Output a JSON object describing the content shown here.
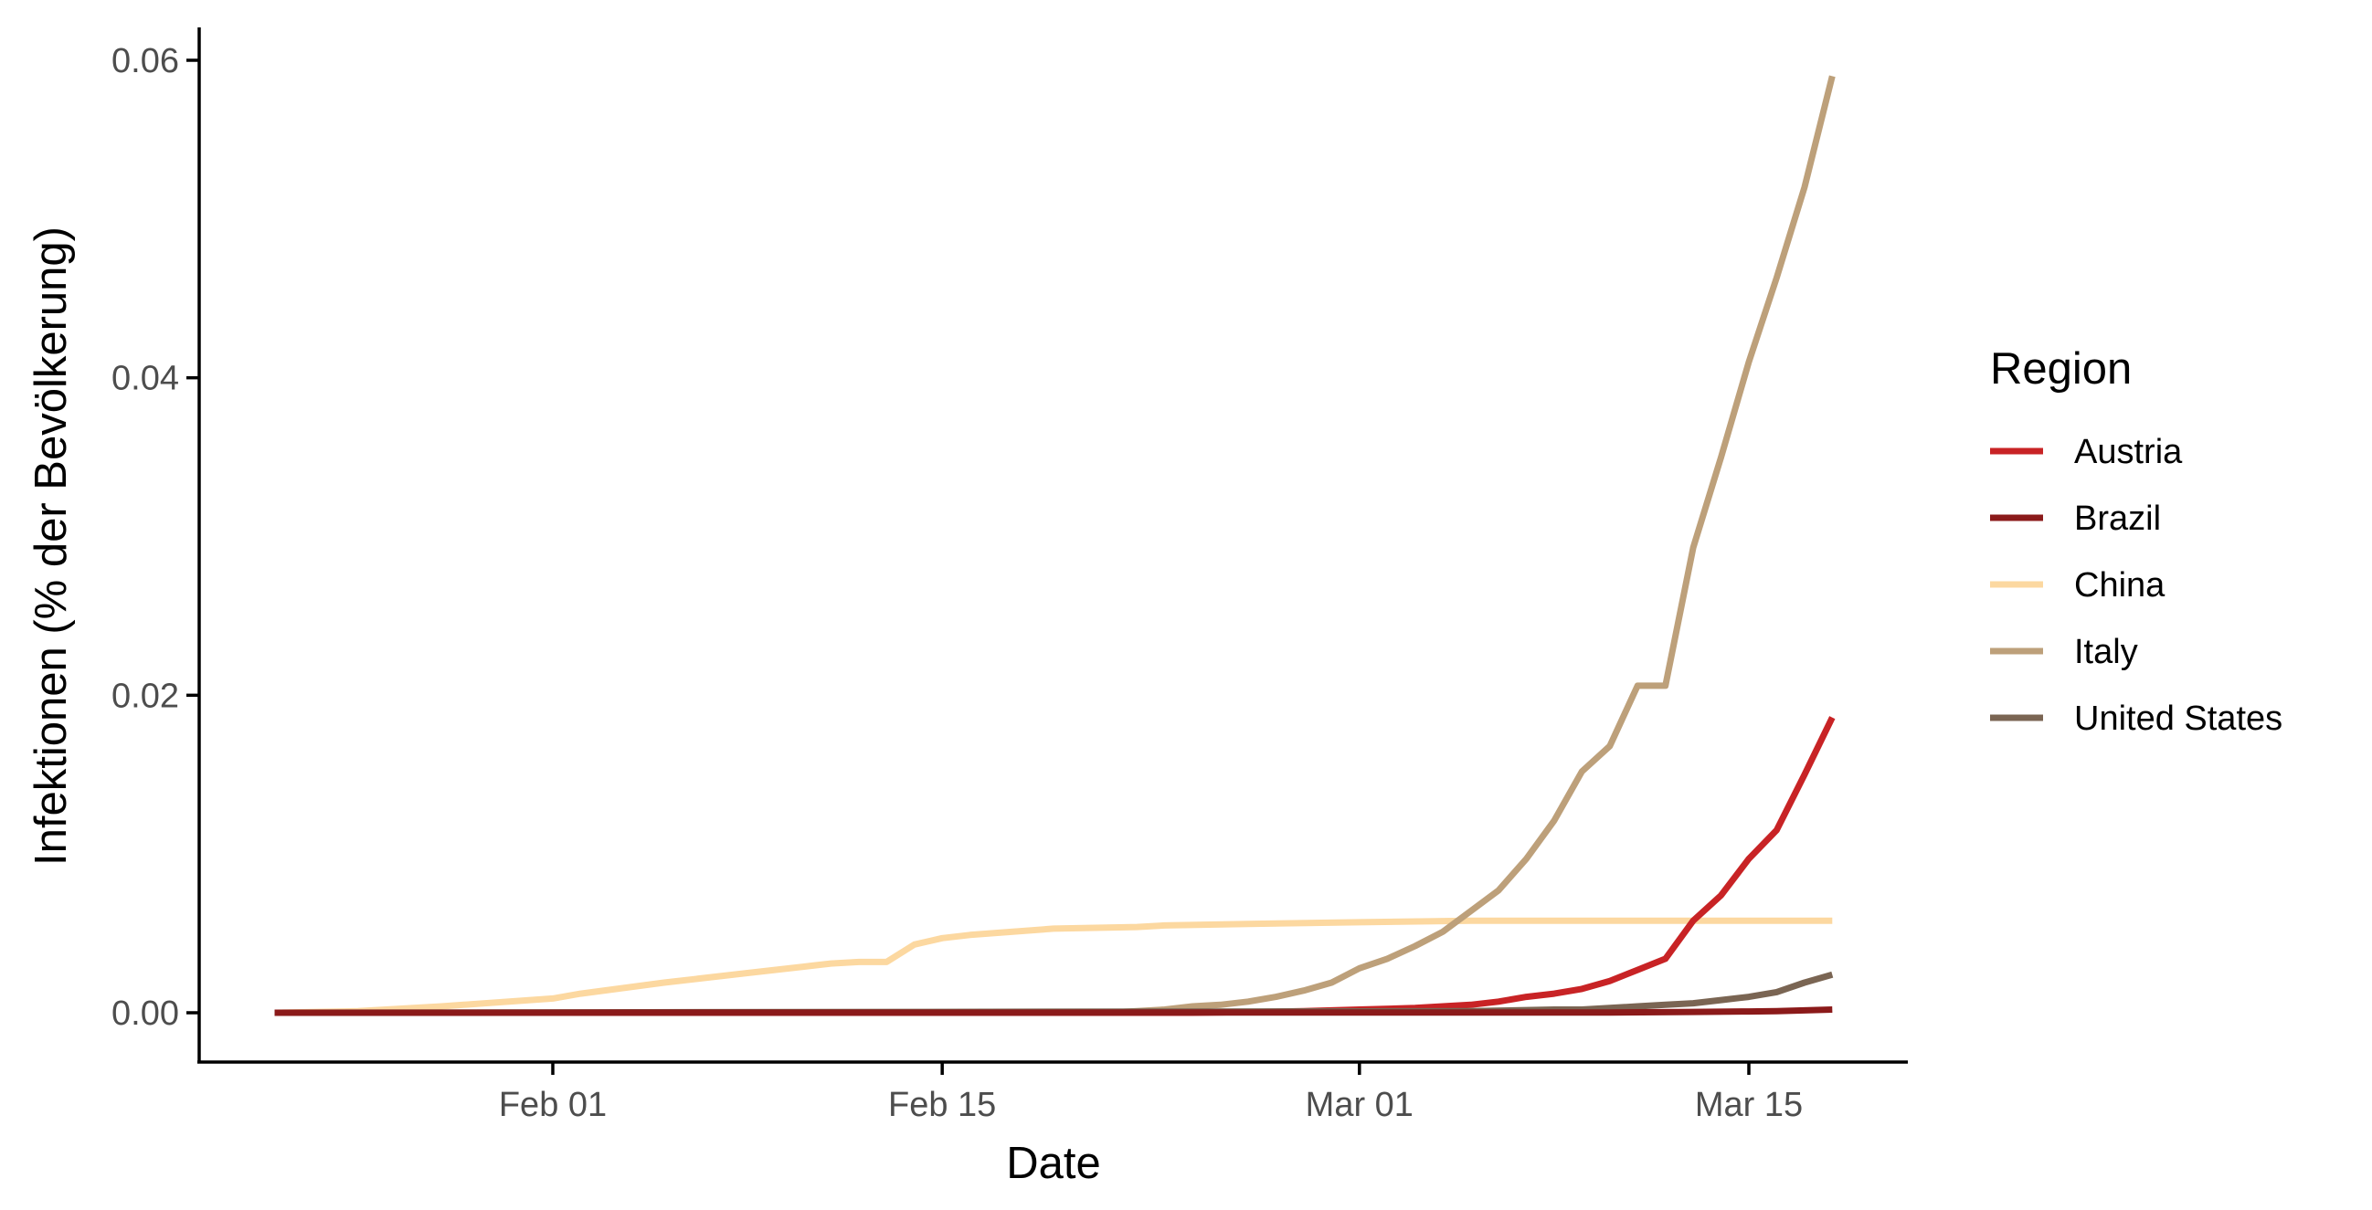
{
  "chart_data": {
    "type": "line",
    "xlabel": "Date",
    "ylabel": "Infektionen (% der Bevölkerung)",
    "x_range": [
      "2020-01-22",
      "2020-03-18"
    ],
    "ylim": [
      -0.003,
      0.0605
    ],
    "x_ticks": [
      {
        "date": "2020-02-01",
        "label": "Feb 01"
      },
      {
        "date": "2020-02-15",
        "label": "Feb 15"
      },
      {
        "date": "2020-03-01",
        "label": "Mar 01"
      },
      {
        "date": "2020-03-15",
        "label": "Mar 15"
      }
    ],
    "y_ticks": [
      {
        "value": 0.0,
        "label": "0.00"
      },
      {
        "value": 0.02,
        "label": "0.02"
      },
      {
        "value": 0.04,
        "label": "0.04"
      },
      {
        "value": 0.06,
        "label": "0.06"
      }
    ],
    "grid": false,
    "legend": {
      "title": "Region",
      "position": "right"
    },
    "series": [
      {
        "name": "China",
        "color": "#fcd8a0",
        "points": [
          [
            "2020-01-22",
            0.0
          ],
          [
            "2020-01-25",
            0.0001
          ],
          [
            "2020-01-28",
            0.0004
          ],
          [
            "2020-02-01",
            0.0009
          ],
          [
            "2020-02-02",
            0.0012
          ],
          [
            "2020-02-05",
            0.0019
          ],
          [
            "2020-02-08",
            0.0025
          ],
          [
            "2020-02-10",
            0.0029
          ],
          [
            "2020-02-11",
            0.0031
          ],
          [
            "2020-02-12",
            0.0032
          ],
          [
            "2020-02-13",
            0.0032
          ],
          [
            "2020-02-14",
            0.0043
          ],
          [
            "2020-02-15",
            0.0047
          ],
          [
            "2020-02-16",
            0.0049
          ],
          [
            "2020-02-19",
            0.0053
          ],
          [
            "2020-02-22",
            0.0054
          ],
          [
            "2020-02-23",
            0.0055
          ],
          [
            "2020-02-26",
            0.0056
          ],
          [
            "2020-03-01",
            0.0057
          ],
          [
            "2020-03-05",
            0.0058
          ],
          [
            "2020-03-10",
            0.0058
          ],
          [
            "2020-03-18",
            0.0058
          ]
        ]
      },
      {
        "name": "Italy",
        "color": "#bda07a",
        "points": [
          [
            "2020-01-22",
            0.0
          ],
          [
            "2020-02-20",
            0.0
          ],
          [
            "2020-02-21",
            1e-05
          ],
          [
            "2020-02-22",
            0.0001
          ],
          [
            "2020-02-23",
            0.0002
          ],
          [
            "2020-02-24",
            0.0004
          ],
          [
            "2020-02-25",
            0.0005
          ],
          [
            "2020-02-26",
            0.0007
          ],
          [
            "2020-02-27",
            0.001
          ],
          [
            "2020-02-28",
            0.0014
          ],
          [
            "2020-02-29",
            0.0019
          ],
          [
            "2020-03-01",
            0.0028
          ],
          [
            "2020-03-02",
            0.0034
          ],
          [
            "2020-03-03",
            0.0042
          ],
          [
            "2020-03-04",
            0.0051
          ],
          [
            "2020-03-05",
            0.0064
          ],
          [
            "2020-03-06",
            0.0077
          ],
          [
            "2020-03-07",
            0.0097
          ],
          [
            "2020-03-08",
            0.0121
          ],
          [
            "2020-03-09",
            0.0152
          ],
          [
            "2020-03-10",
            0.0168
          ],
          [
            "2020-03-11",
            0.0206
          ],
          [
            "2020-03-12",
            0.0206
          ],
          [
            "2020-03-13",
            0.0293
          ],
          [
            "2020-03-14",
            0.035
          ],
          [
            "2020-03-15",
            0.041
          ],
          [
            "2020-03-16",
            0.0463
          ],
          [
            "2020-03-17",
            0.052
          ],
          [
            "2020-03-18",
            0.059
          ]
        ]
      },
      {
        "name": "Austria",
        "color": "#c82325",
        "points": [
          [
            "2020-01-22",
            0.0
          ],
          [
            "2020-02-24",
            0.0
          ],
          [
            "2020-02-28",
            0.0001
          ],
          [
            "2020-03-01",
            0.0002
          ],
          [
            "2020-03-03",
            0.0003
          ],
          [
            "2020-03-05",
            0.0005
          ],
          [
            "2020-03-06",
            0.0007
          ],
          [
            "2020-03-07",
            0.001
          ],
          [
            "2020-03-08",
            0.0012
          ],
          [
            "2020-03-09",
            0.0015
          ],
          [
            "2020-03-10",
            0.002
          ],
          [
            "2020-03-11",
            0.0027
          ],
          [
            "2020-03-12",
            0.0034
          ],
          [
            "2020-03-13",
            0.0058
          ],
          [
            "2020-03-14",
            0.0074
          ],
          [
            "2020-03-15",
            0.0097
          ],
          [
            "2020-03-16",
            0.0115
          ],
          [
            "2020-03-17",
            0.015
          ],
          [
            "2020-03-18",
            0.0186
          ]
        ]
      },
      {
        "name": "United States",
        "color": "#7a6553",
        "points": [
          [
            "2020-01-22",
            0.0
          ],
          [
            "2020-03-05",
            0.0001
          ],
          [
            "2020-03-08",
            0.0002
          ],
          [
            "2020-03-09",
            0.0002
          ],
          [
            "2020-03-10",
            0.0003
          ],
          [
            "2020-03-11",
            0.0004
          ],
          [
            "2020-03-12",
            0.0005
          ],
          [
            "2020-03-13",
            0.0006
          ],
          [
            "2020-03-14",
            0.0008
          ],
          [
            "2020-03-15",
            0.001
          ],
          [
            "2020-03-16",
            0.0013
          ],
          [
            "2020-03-17",
            0.0019
          ],
          [
            "2020-03-18",
            0.0024
          ]
        ]
      },
      {
        "name": "Brazil",
        "color": "#8b1a1a",
        "points": [
          [
            "2020-01-22",
            0.0
          ],
          [
            "2020-03-10",
            2e-05
          ],
          [
            "2020-03-13",
            5e-05
          ],
          [
            "2020-03-15",
            8e-05
          ],
          [
            "2020-03-16",
            0.0001
          ],
          [
            "2020-03-17",
            0.00015
          ],
          [
            "2020-03-18",
            0.0002
          ]
        ]
      }
    ],
    "legend_order": [
      "Austria",
      "Brazil",
      "China",
      "Italy",
      "United States"
    ]
  }
}
